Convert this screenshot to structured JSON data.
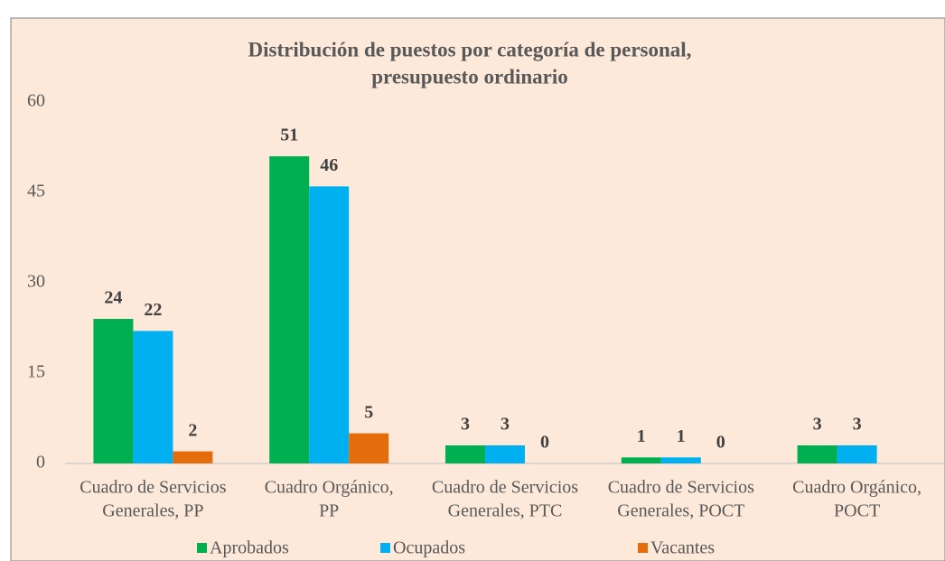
{
  "chart_data": {
    "type": "bar",
    "title": [
      "Distribución de puestos por categoría de personal,",
      "presupuesto ordinario"
    ],
    "categories": [
      [
        "Cuadro de Servicios",
        "Generales, PP"
      ],
      [
        "Cuadro Orgánico,",
        "PP"
      ],
      [
        "Cuadro de Servicios",
        "Generales, PTC"
      ],
      [
        "Cuadro de Servicios",
        "Generales, POCT"
      ],
      [
        "Cuadro Orgánico,",
        "POCT"
      ]
    ],
    "series": [
      {
        "name": "Aprobados",
        "color": "#00b050",
        "values": [
          24,
          51,
          3,
          1,
          3
        ]
      },
      {
        "name": "Ocupados",
        "color": "#00b0f0",
        "values": [
          22,
          46,
          3,
          1,
          3
        ]
      },
      {
        "name": "Vacantes",
        "color": "#e46c0a",
        "values": [
          2,
          5,
          0,
          0,
          null
        ]
      }
    ],
    "ylim": [
      0,
      60
    ],
    "yticks": [
      0,
      15,
      30,
      45,
      60
    ],
    "grid": false,
    "legend": "bottom"
  }
}
